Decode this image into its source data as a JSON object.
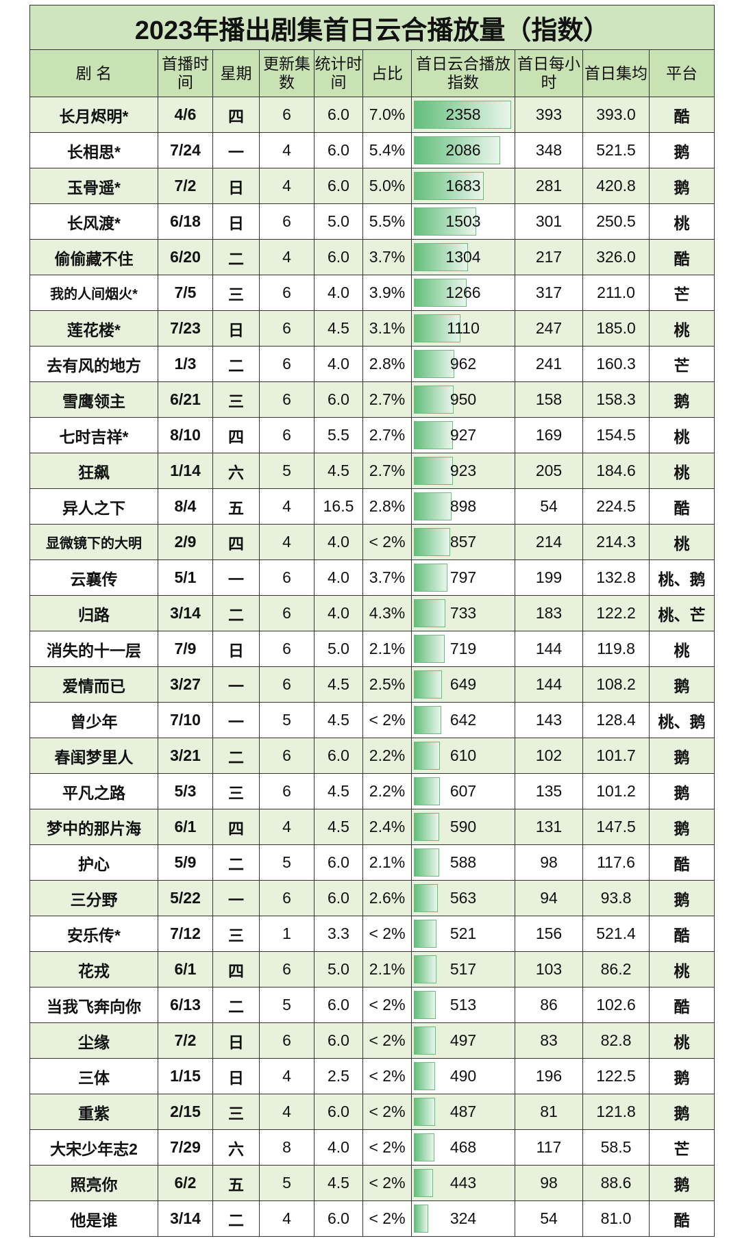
{
  "title": "2023年播出剧集首日云合播放量（指数）",
  "headers": [
    "剧 名",
    "首播时间",
    "星期",
    "更新集数",
    "统计时间",
    "占比",
    "首日云合播放指数",
    "首日每小时",
    "首日集均",
    "平台"
  ],
  "bar_color": "#63be7b",
  "row_colors": [
    "#e7f1dc",
    "#ffffff"
  ],
  "rows": [
    [
      "长月烬明*",
      "4/6",
      "四",
      "6",
      "6.0",
      "7.0%",
      "2358",
      "393",
      "393.0",
      "酷"
    ],
    [
      "长相思*",
      "7/24",
      "一",
      "4",
      "6.0",
      "5.4%",
      "2086",
      "348",
      "521.5",
      "鹅"
    ],
    [
      "玉骨遥*",
      "7/2",
      "日",
      "4",
      "6.0",
      "5.0%",
      "1683",
      "281",
      "420.8",
      "鹅"
    ],
    [
      "长风渡*",
      "6/18",
      "日",
      "6",
      "5.0",
      "5.5%",
      "1503",
      "301",
      "250.5",
      "桃"
    ],
    [
      "偷偷藏不住",
      "6/20",
      "二",
      "4",
      "6.0",
      "3.7%",
      "1304",
      "217",
      "326.0",
      "酷"
    ],
    [
      "我的人间烟火*",
      "7/5",
      "三",
      "6",
      "4.0",
      "3.9%",
      "1266",
      "317",
      "211.0",
      "芒"
    ],
    [
      "莲花楼*",
      "7/23",
      "日",
      "6",
      "4.5",
      "3.1%",
      "1110",
      "247",
      "185.0",
      "桃"
    ],
    [
      "去有风的地方",
      "1/3",
      "二",
      "6",
      "4.0",
      "2.8%",
      "962",
      "241",
      "160.3",
      "芒"
    ],
    [
      "雪鹰领主",
      "6/21",
      "三",
      "6",
      "6.0",
      "2.7%",
      "950",
      "158",
      "158.3",
      "鹅"
    ],
    [
      "七时吉祥*",
      "8/10",
      "四",
      "6",
      "5.5",
      "2.7%",
      "927",
      "169",
      "154.5",
      "桃"
    ],
    [
      "狂飙",
      "1/14",
      "六",
      "5",
      "4.5",
      "2.7%",
      "923",
      "205",
      "184.6",
      "桃"
    ],
    [
      "异人之下",
      "8/4",
      "五",
      "4",
      "16.5",
      "2.8%",
      "898",
      "54",
      "224.5",
      "酷"
    ],
    [
      "显微镜下的大明",
      "2/9",
      "四",
      "4",
      "4.0",
      "< 2%",
      "857",
      "214",
      "214.3",
      "桃"
    ],
    [
      "云襄传",
      "5/1",
      "一",
      "6",
      "4.0",
      "3.7%",
      "797",
      "199",
      "132.8",
      "桃、鹅"
    ],
    [
      "归路",
      "3/14",
      "二",
      "6",
      "4.0",
      "4.3%",
      "733",
      "183",
      "122.2",
      "桃、芒"
    ],
    [
      "消失的十一层",
      "7/9",
      "日",
      "6",
      "5.0",
      "2.1%",
      "719",
      "144",
      "119.8",
      "桃"
    ],
    [
      "爱情而已",
      "3/27",
      "一",
      "6",
      "4.5",
      "2.5%",
      "649",
      "144",
      "108.2",
      "鹅"
    ],
    [
      "曾少年",
      "7/10",
      "一",
      "5",
      "4.5",
      "< 2%",
      "642",
      "143",
      "128.4",
      "桃、鹅"
    ],
    [
      "春闺梦里人",
      "3/21",
      "二",
      "6",
      "6.0",
      "2.2%",
      "610",
      "102",
      "101.7",
      "鹅"
    ],
    [
      "平凡之路",
      "5/3",
      "三",
      "6",
      "4.5",
      "2.2%",
      "607",
      "135",
      "101.2",
      "鹅"
    ],
    [
      "梦中的那片海",
      "6/1",
      "四",
      "4",
      "4.5",
      "2.4%",
      "590",
      "131",
      "147.5",
      "鹅"
    ],
    [
      "护心",
      "5/9",
      "二",
      "5",
      "6.0",
      "2.1%",
      "588",
      "98",
      "117.6",
      "酷"
    ],
    [
      "三分野",
      "5/22",
      "一",
      "6",
      "6.0",
      "2.6%",
      "563",
      "94",
      "93.8",
      "鹅"
    ],
    [
      "安乐传*",
      "7/12",
      "三",
      "1",
      "3.3",
      "< 2%",
      "521",
      "156",
      "521.4",
      "酷"
    ],
    [
      "花戎",
      "6/1",
      "四",
      "6",
      "5.0",
      "2.1%",
      "517",
      "103",
      "86.2",
      "桃"
    ],
    [
      "当我飞奔向你",
      "6/13",
      "二",
      "5",
      "6.0",
      "< 2%",
      "513",
      "86",
      "102.6",
      "酷"
    ],
    [
      "尘缘",
      "7/2",
      "日",
      "6",
      "6.0",
      "< 2%",
      "497",
      "83",
      "82.8",
      "桃"
    ],
    [
      "三体",
      "1/15",
      "日",
      "4",
      "2.5",
      "< 2%",
      "490",
      "196",
      "122.5",
      "鹅"
    ],
    [
      "重紫",
      "2/15",
      "三",
      "4",
      "6.0",
      "< 2%",
      "487",
      "81",
      "121.8",
      "鹅"
    ],
    [
      "大宋少年志2",
      "7/29",
      "六",
      "8",
      "4.0",
      "< 2%",
      "468",
      "117",
      "58.5",
      "芒"
    ],
    [
      "照亮你",
      "6/2",
      "五",
      "5",
      "4.5",
      "< 2%",
      "443",
      "98",
      "88.6",
      "鹅"
    ],
    [
      "他是谁",
      "3/14",
      "二",
      "4",
      "6.0",
      "< 2%",
      "324",
      "54",
      "81.0",
      "酷"
    ]
  ]
}
